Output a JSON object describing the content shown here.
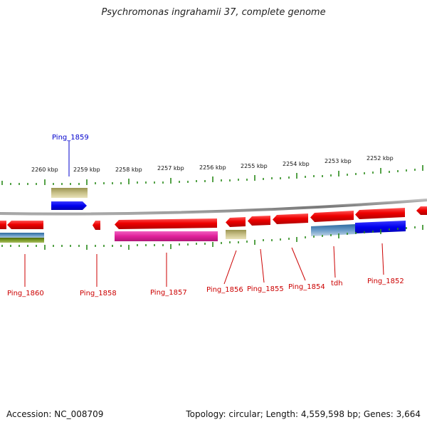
{
  "title": "Psychromonas ingrahamii 37, complete genome",
  "footer": {
    "accession": "Accession: NC_008709",
    "info": "Topology: circular; Length: 4,559,598 bp; Genes: 3,664"
  },
  "tick_labels": [
    "2260 kbp",
    "2259 kbp",
    "2258 kbp",
    "2257 kbp",
    "2256 kbp",
    "2255 kbp",
    "2254 kbp",
    "2253 kbp",
    "2252 kbp"
  ],
  "gene_labels": [
    {
      "id": "ping1859",
      "text": "Ping_1859",
      "color": "#0000cc"
    },
    {
      "id": "ping1860",
      "text": "Ping_1860",
      "color": "#cc0000"
    },
    {
      "id": "ping1858",
      "text": "Ping_1858",
      "color": "#cc0000"
    },
    {
      "id": "ping1857",
      "text": "Ping_1857",
      "color": "#cc0000"
    },
    {
      "id": "ping1856",
      "text": "Ping_1856",
      "color": "#cc0000"
    },
    {
      "id": "ping1855",
      "text": "Ping_1855",
      "color": "#cc0000"
    },
    {
      "id": "ping1854",
      "text": "Ping_1854",
      "color": "#cc0000"
    },
    {
      "id": "tdh",
      "text": "tdh",
      "color": "#cc0000"
    },
    {
      "id": "ping1852",
      "text": "Ping_1852",
      "color": "#cc0000"
    }
  ],
  "colors": {
    "gene_red": "#ee0000",
    "gene_blue": "#0000ee",
    "gene_magenta": "#e0209a",
    "gene_khaki": "#b8b070",
    "gene_steelblue": "#4a7fb0",
    "gene_olive": "#6e8a20",
    "tick_green": "#2a8a1a",
    "backbone": "#888888"
  }
}
